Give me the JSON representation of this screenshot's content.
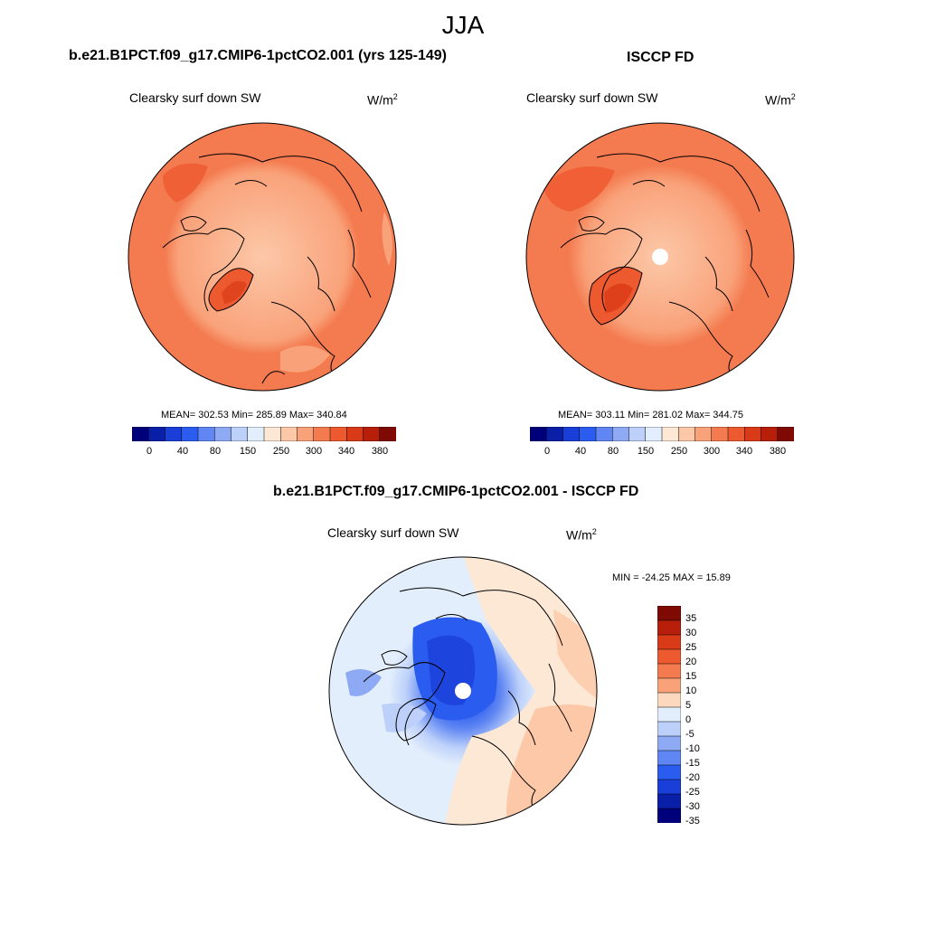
{
  "main_title": "JJA",
  "panels": [
    {
      "title": "b.e21.B1PCT.f09_g17.CMIP6-1pctCO2.001 (yrs 125-149)",
      "variable": "Clearsky surf down SW",
      "units_base": "W/m",
      "units_exp": "2",
      "stats": "MEAN= 302.53  Min= 285.89  Max= 340.84"
    },
    {
      "title": "ISCCP FD",
      "variable": "Clearsky surf down SW",
      "units_base": "W/m",
      "units_exp": "2",
      "stats": "MEAN= 303.11  Min= 281.02  Max= 344.75"
    },
    {
      "title": "b.e21.B1PCT.f09_g17.CMIP6-1pctCO2.001 - ISCCP FD",
      "variable": "Clearsky surf down SW",
      "units_base": "W/m",
      "units_exp": "2",
      "stats": "MIN = -24.25 MAX =  15.89"
    }
  ],
  "abs_colorbar": {
    "colors": [
      "#00007a",
      "#0a1fa8",
      "#1a3fd8",
      "#2b5cf0",
      "#5f86f2",
      "#8eaaf5",
      "#bcd0fa",
      "#e3eefc",
      "#fde8d6",
      "#fcc8a8",
      "#f9a27a",
      "#f47a4f",
      "#ee5a30",
      "#d93a17",
      "#b71f0b",
      "#7f0a04"
    ],
    "ticks": [
      "0",
      "40",
      "80",
      "150",
      "250",
      "300",
      "340",
      "380"
    ]
  },
  "diff_colorbar": {
    "colors": [
      "#7f0a04",
      "#b71f0b",
      "#d93a17",
      "#ee5a30",
      "#f47a4f",
      "#f9a27a",
      "#fcd8be",
      "#e3eefc",
      "#bcd0fa",
      "#8eaaf5",
      "#5f86f2",
      "#2b5cf0",
      "#1a3fd8",
      "#0a1fa8",
      "#00007a"
    ],
    "labels": [
      "35",
      "30",
      "25",
      "20",
      "15",
      "10",
      "5",
      "0",
      "-5",
      "-10",
      "-15",
      "-20",
      "-25",
      "-30",
      "-35"
    ]
  },
  "chart_data": {
    "type": "heatmap",
    "title": "JJA",
    "projection": "north polar stereographic",
    "series": [
      {
        "name": "b.e21.B1PCT.f09_g17.CMIP6-1pctCO2.001 (yrs 125-149)",
        "variable": "Clearsky surf down SW",
        "units": "W/m2",
        "mean": 302.53,
        "min": 285.89,
        "max": 340.84
      },
      {
        "name": "ISCCP FD",
        "variable": "Clearsky surf down SW",
        "units": "W/m2",
        "mean": 303.11,
        "min": 281.02,
        "max": 344.75
      },
      {
        "name": "b.e21.B1PCT.f09_g17.CMIP6-1pctCO2.001 - ISCCP FD",
        "variable": "Clearsky surf down SW",
        "units": "W/m2",
        "min": -24.25,
        "max": 15.89
      }
    ],
    "abs_levels": [
      0,
      40,
      80,
      150,
      250,
      300,
      340,
      380
    ],
    "diff_levels": [
      -35,
      -30,
      -25,
      -20,
      -15,
      -10,
      -5,
      0,
      5,
      10,
      15,
      20,
      25,
      30,
      35
    ]
  }
}
